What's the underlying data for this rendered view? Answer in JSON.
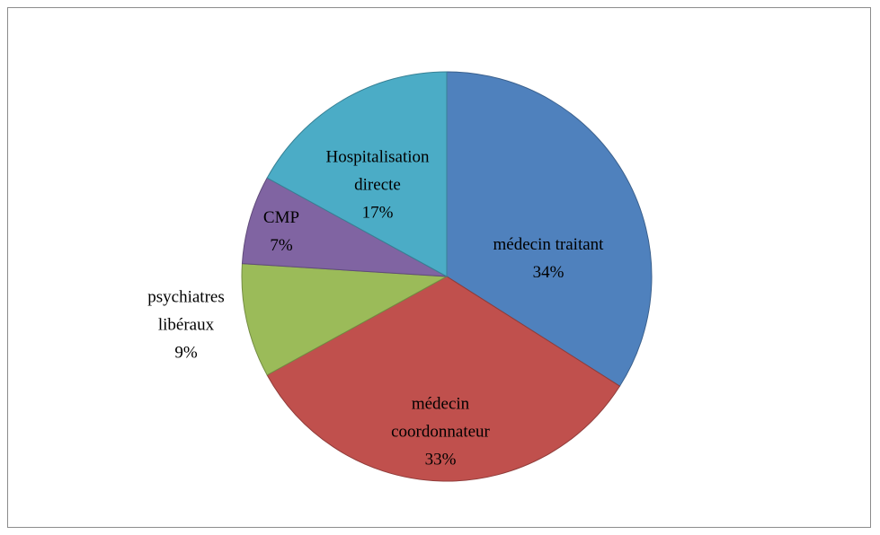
{
  "chart_data": {
    "type": "pie",
    "categories": [
      "médecin traitant",
      "médecin coordonnateur",
      "psychiatres libéraux",
      "CMP",
      "Hospitalisation directe"
    ],
    "values": [
      34,
      33,
      9,
      7,
      17
    ],
    "value_labels": [
      "34%",
      "33%",
      "9%",
      "7%",
      "17%"
    ],
    "colors": [
      "#4f81bd",
      "#c0504d",
      "#9bbb59",
      "#8064a2",
      "#4bacc6"
    ]
  }
}
